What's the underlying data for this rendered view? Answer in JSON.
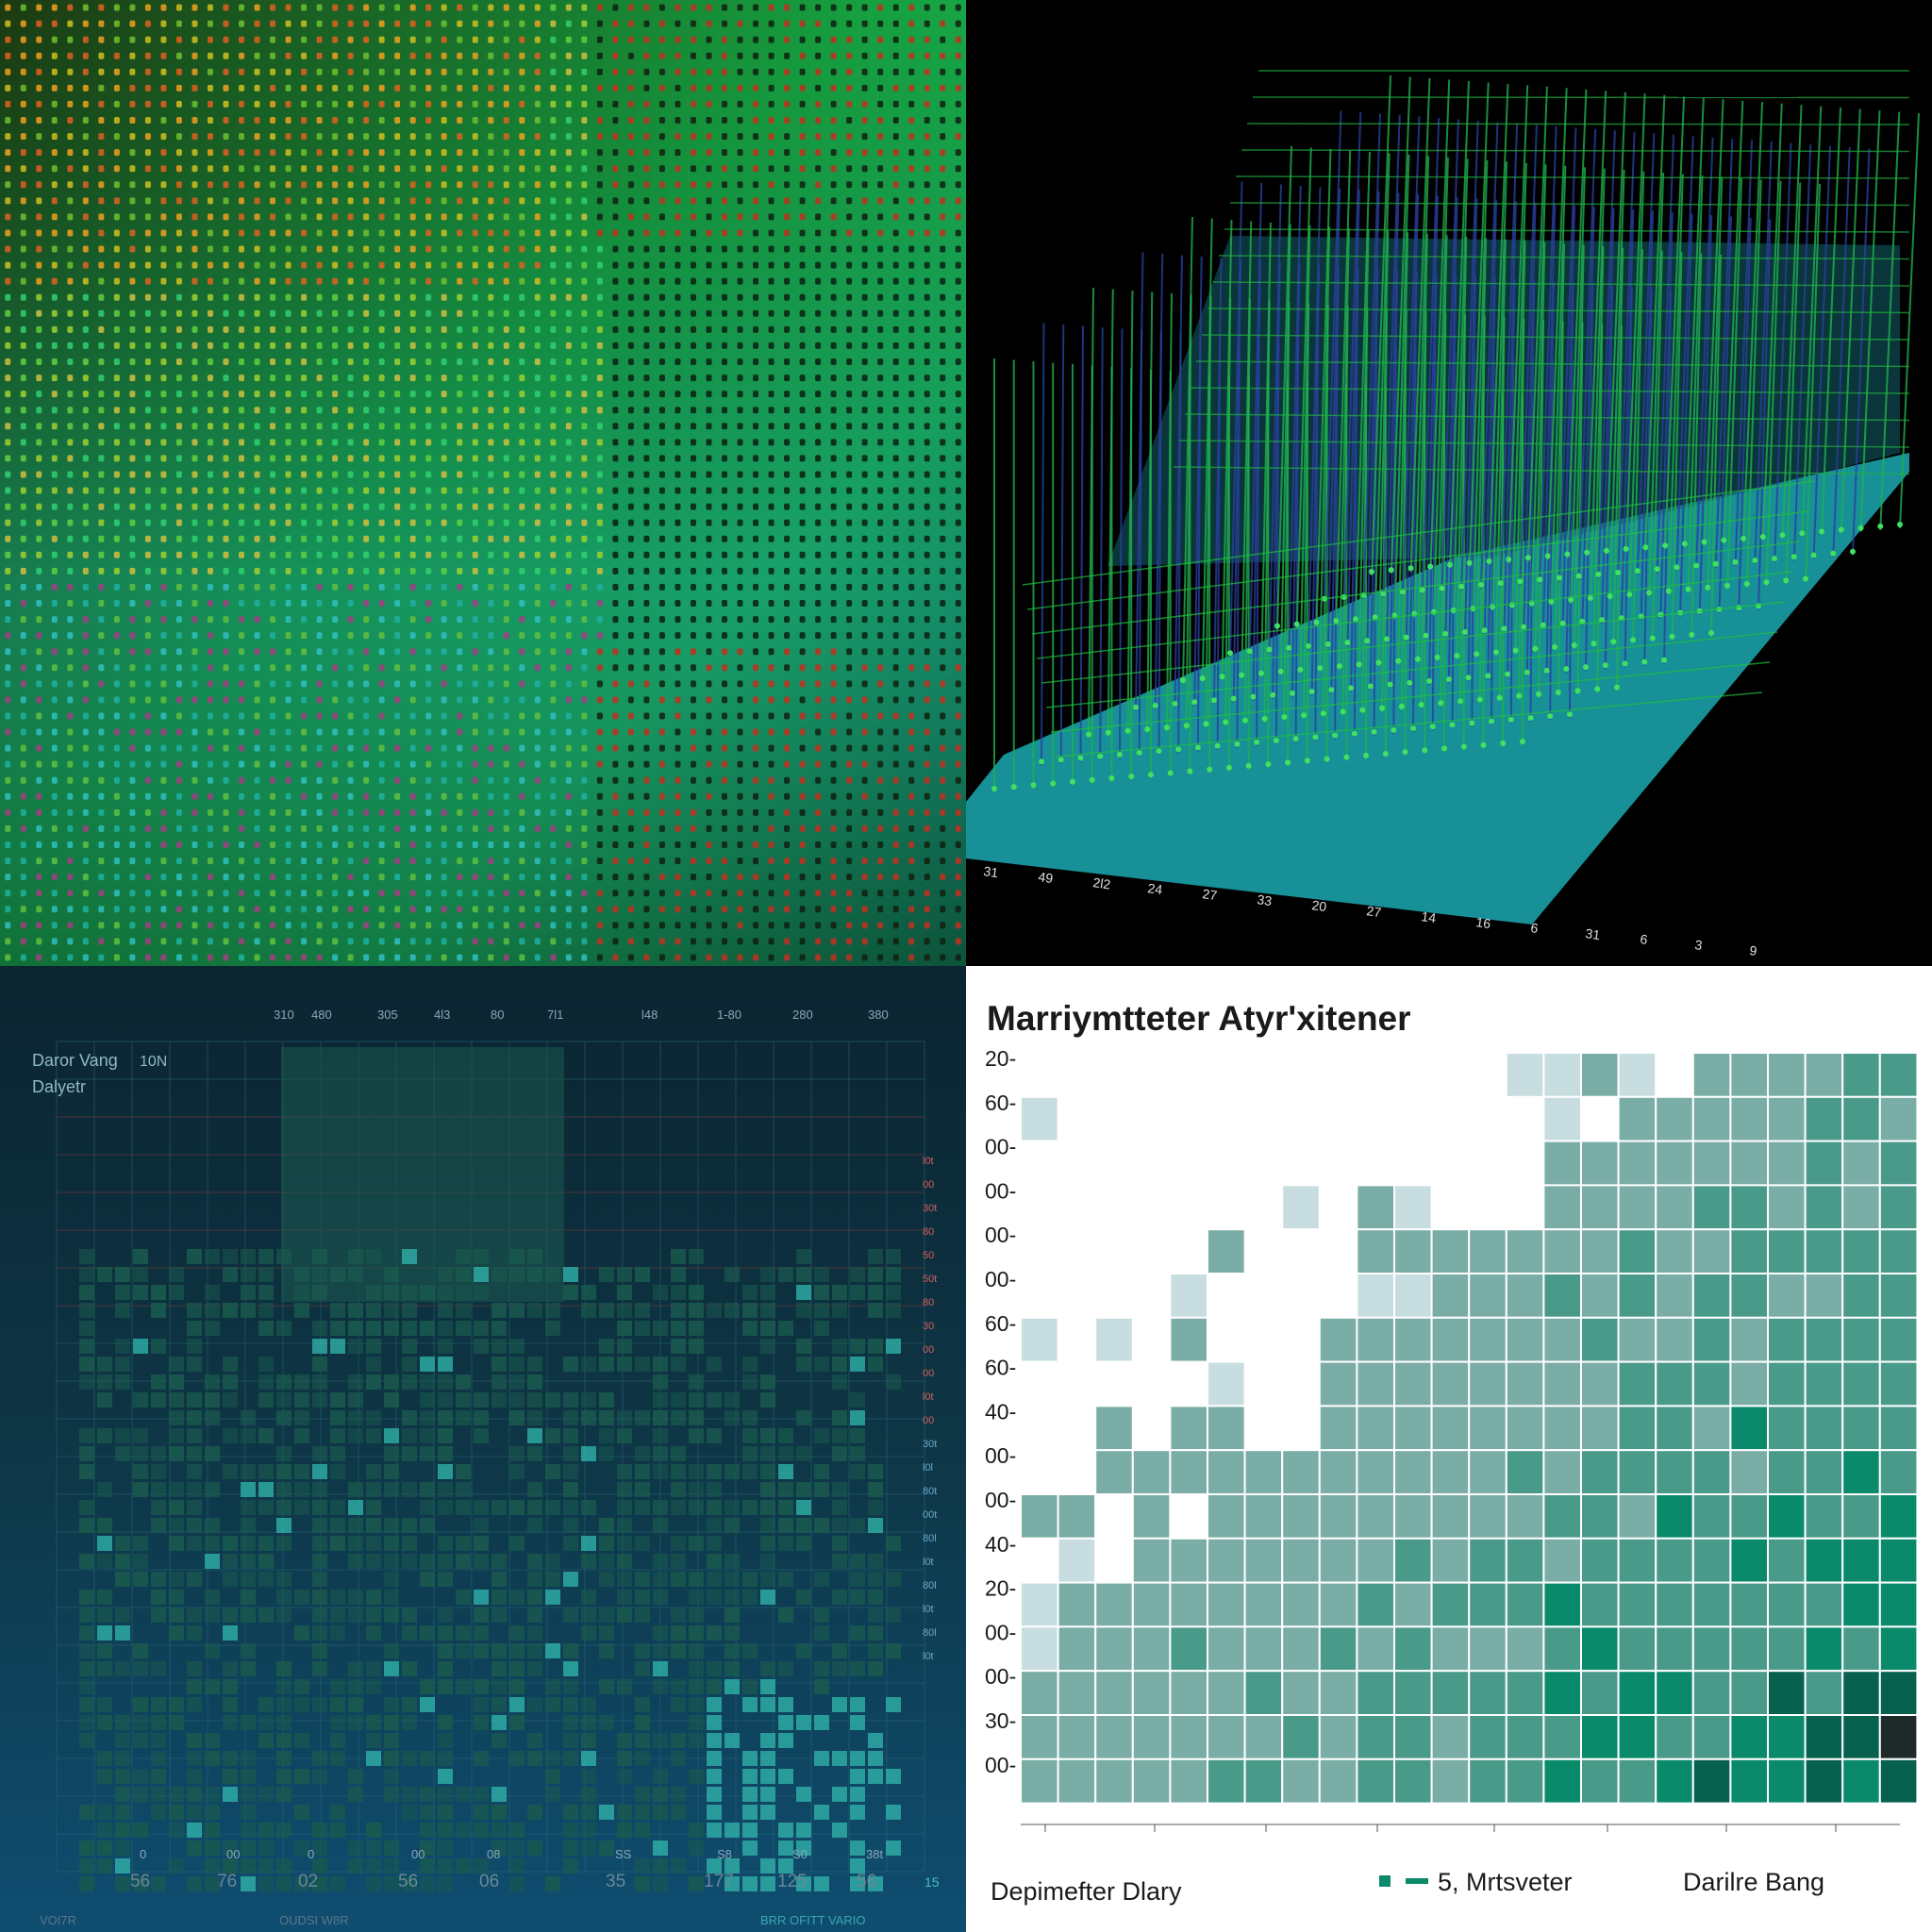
{
  "chart_data": [
    {
      "type": "heatmap",
      "title": "",
      "colors": [
        "#0b2a1a",
        "#10a040",
        "#2fd070",
        "#b8d020",
        "#e07020",
        "#20a0a0"
      ]
    },
    {
      "type": "bar",
      "title": "",
      "categories": [
        "31",
        "49",
        "2l2",
        "24",
        "27",
        "33",
        "20",
        "27",
        "14",
        "16",
        "6",
        "31",
        "6",
        "3",
        "9"
      ],
      "colors": {
        "bars": "#2a3fa0",
        "grid": "#20b040",
        "base": "#1aa0a8"
      }
    },
    {
      "type": "heatmap",
      "title": "Daror Vang",
      "title_suffix": "10N",
      "subtitle": "Dalyetr",
      "top_labels": [
        "310",
        "480",
        "305",
        "4l3",
        "80",
        "7l1",
        "l48",
        "1-80",
        "280",
        "380"
      ],
      "right_labels": [
        "l0t",
        "00",
        "30t",
        "80",
        "50",
        "50t",
        "80",
        "30",
        "00",
        "00",
        "l0t",
        "00",
        "30t",
        "l0l",
        "80t",
        "00t",
        "80l",
        "l0t",
        "80l",
        "l0t",
        "80l",
        "l0t"
      ],
      "bottom_small": [
        "0",
        "00",
        "0",
        "00",
        "08",
        "SS",
        "S8",
        "S0",
        "38t"
      ],
      "bottom_big": [
        "56",
        "76",
        "02",
        "56",
        "06",
        "35",
        "177",
        "125",
        "56",
        "15"
      ],
      "footer_labels": [
        "VOI7R",
        "OUDSI W8R",
        "BRR OFITT VARIO"
      ],
      "colors": {
        "bg_top": "#0c2632",
        "bg_bottom": "#0f4a6a",
        "cell": "#1a6a5a",
        "bright": "#40d0c0",
        "red": "#c04040"
      }
    },
    {
      "type": "heatmap",
      "title": "Marriymtteter Atyr'xitener",
      "ylabels": [
        "20-",
        "60-",
        "00-",
        "00-",
        "00-",
        "00-",
        "60-",
        "60-",
        "40-",
        "00-",
        "00-",
        "40-",
        "20-",
        "00-",
        "00-",
        "30-",
        "00-"
      ],
      "xlabel": "Depimefter Dlary",
      "legend": [
        "5, Mrtsveter",
        "Darilre Bang"
      ],
      "colors": {
        "light": "#c8dde0",
        "mid": "#7aada6",
        "green": "#0a8a6a",
        "dark": "#1e2628",
        "grid": "#ffffff"
      }
    }
  ]
}
